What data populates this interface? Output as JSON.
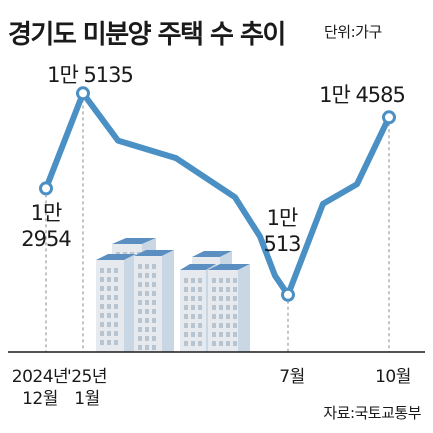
{
  "title": "경기도 미분양 주택 수 추이",
  "unit": "단위:가구",
  "source": "자료:국토교통부",
  "colors": {
    "line": "#4a90c4",
    "marker_fill": "#ffffff",
    "axis": "#1a1a1a",
    "guide": "#888888",
    "building_front": "#e6eaef",
    "building_side": "#c9d6e3",
    "building_roof": "#5b8fc2"
  },
  "chart_data": {
    "type": "line",
    "title": "경기도 미분양 주택 수 추이",
    "ylabel": "",
    "unit": "단위:가구",
    "x": [
      "2024-12",
      "2025-01",
      "2025-02",
      "2025-03",
      "2025-04",
      "2025-05",
      "2025-06",
      "2025-07",
      "2025-08",
      "2025-09",
      "2025-10"
    ],
    "values": [
      12954,
      15135,
      14050,
      13650,
      12750,
      11850,
      10950,
      10513,
      12600,
      13050,
      14585
    ],
    "xticks": [
      {
        "index": 0,
        "lines": [
          "2024년",
          "12월"
        ]
      },
      {
        "index": 1,
        "lines": [
          "'25년",
          "1월"
        ]
      },
      {
        "index": 7,
        "lines": [
          "7월"
        ]
      },
      {
        "index": 10,
        "lines": [
          "10월"
        ]
      }
    ],
    "annotations": [
      {
        "index": 0,
        "lines": [
          "1만",
          "2954"
        ]
      },
      {
        "index": 1,
        "lines": [
          "1만 5135"
        ]
      },
      {
        "index": 7,
        "lines": [
          "1만",
          "513"
        ]
      },
      {
        "index": 10,
        "lines": [
          "1만 4585"
        ]
      }
    ],
    "markers": [
      0,
      1,
      7,
      10
    ],
    "ylim": [
      9200,
      15900
    ],
    "grid": false,
    "legend": "none"
  }
}
